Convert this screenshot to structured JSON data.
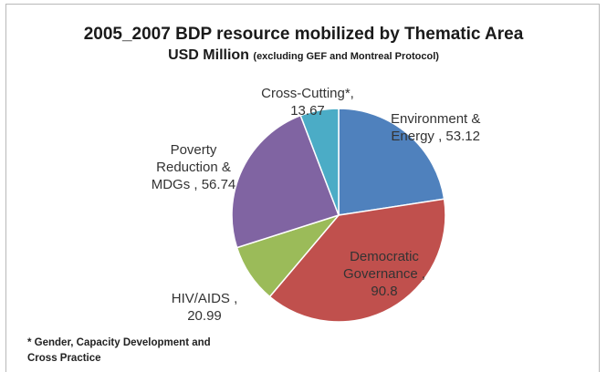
{
  "chart_data": {
    "type": "pie",
    "title": "2005_2007 BDP resource mobilized by Thematic Area",
    "subtitle": "USD Million",
    "subtitle_note": "(excluding GEF and Montreal Protocol)",
    "slices": [
      {
        "name": "Environment & Energy",
        "value": 53.12,
        "color": "#4f81bd",
        "label_lines": [
          "Environment &",
          "Energy , 53.12"
        ]
      },
      {
        "name": "Democratic Governance",
        "value": 90.8,
        "color": "#c0504d",
        "label_lines": [
          "Democratic",
          "Governance ,",
          "90.8"
        ]
      },
      {
        "name": "HIV/AIDS",
        "value": 20.99,
        "color": "#9bbb59",
        "label_lines": [
          "HIV/AIDS ,",
          "20.99"
        ]
      },
      {
        "name": "Poverty Reduction & MDGs",
        "value": 56.74,
        "color": "#8064a2",
        "label_lines": [
          "Poverty",
          "Reduction &",
          "MDGs , 56.74"
        ]
      },
      {
        "name": "Cross-Cutting*",
        "value": 13.67,
        "color": "#4bacc6",
        "label_lines": [
          "Cross-Cutting*,",
          "13.67"
        ]
      }
    ],
    "footnote_lines": [
      "* Gender, Capacity Development and",
      "Cross Practice"
    ]
  }
}
